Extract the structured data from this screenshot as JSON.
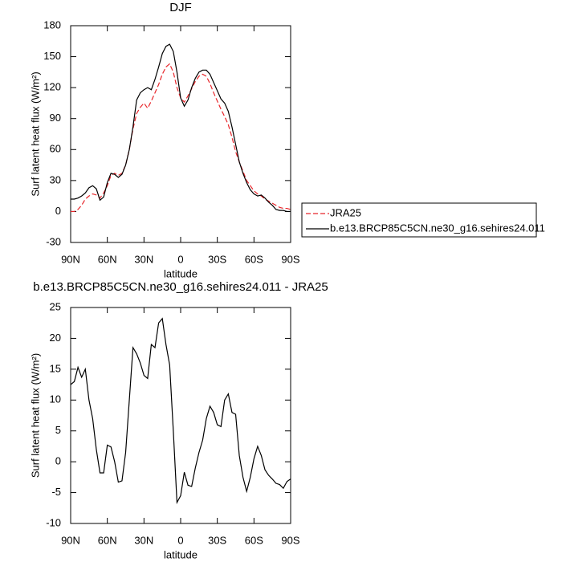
{
  "chart_data": [
    {
      "type": "line",
      "title": "DJF",
      "xlabel": "latitude",
      "ylabel": "Surf latent heat flux (W/m²)",
      "x": [
        90,
        87,
        84,
        81,
        78,
        75,
        72,
        69,
        66,
        63,
        60,
        57,
        54,
        51,
        48,
        45,
        42,
        39,
        36,
        33,
        30,
        27,
        24,
        21,
        18,
        15,
        12,
        9,
        6,
        3,
        0,
        -3,
        -6,
        -9,
        -12,
        -15,
        -18,
        -21,
        -24,
        -27,
        -30,
        -33,
        -36,
        -39,
        -42,
        -45,
        -48,
        -51,
        -54,
        -57,
        -60,
        -63,
        -66,
        -69,
        -72,
        -75,
        -78,
        -81,
        -84,
        -87,
        -90
      ],
      "series": [
        {
          "name": "JRA25",
          "color": "#e8262b",
          "line_style": "dashed",
          "values": [
            0,
            0,
            2,
            6,
            12,
            15,
            17,
            16,
            13,
            18,
            25,
            35,
            37,
            35,
            37,
            45,
            60,
            80,
            95,
            101,
            105,
            100,
            107,
            115,
            123,
            133,
            140,
            143,
            135,
            120,
            110,
            106,
            112,
            119,
            126,
            131,
            133,
            131,
            124,
            115,
            107,
            99,
            92,
            84,
            72,
            58,
            48,
            39,
            30,
            25,
            20,
            17,
            15,
            12,
            10,
            8,
            6,
            4,
            3,
            3,
            2
          ]
        },
        {
          "name": "b.e13.BRCP85C5CN.ne30_g16.sehires24.011",
          "color": "#000000",
          "line_style": "solid",
          "values": [
            12,
            12,
            13,
            15,
            18,
            23,
            25,
            22,
            11,
            14,
            28,
            37,
            36,
            33,
            36,
            45,
            60,
            82,
            108,
            115,
            118,
            120,
            118,
            128,
            140,
            153,
            160,
            162,
            155,
            135,
            110,
            102,
            108,
            120,
            129,
            135,
            137,
            137,
            133,
            125,
            117,
            109,
            105,
            97,
            82,
            65,
            48,
            37,
            28,
            21,
            17,
            15,
            16,
            13,
            9,
            6,
            2,
            1,
            1,
            0,
            0
          ]
        }
      ],
      "xlim": [
        90,
        -90
      ],
      "xticks": [
        {
          "value": 90,
          "label": "90N"
        },
        {
          "value": 60,
          "label": "60N"
        },
        {
          "value": 30,
          "label": "30N"
        },
        0,
        {
          "value": -30,
          "label": "30S"
        },
        {
          "value": -60,
          "label": "60S"
        },
        {
          "value": -90,
          "label": "90S"
        }
      ],
      "ylim": [
        -30,
        180
      ],
      "yticks": [
        -30,
        0,
        30,
        60,
        90,
        120,
        150,
        180
      ],
      "legend": "right"
    },
    {
      "type": "line",
      "title": "b.e13.BRCP85C5CN.ne30_g16.sehires24.011 - JRA25",
      "xlabel": "latitude",
      "ylabel": "Surf latent heat flux (W/m²)",
      "x": [
        90,
        87,
        84,
        81,
        78,
        75,
        72,
        69,
        66,
        63,
        60,
        57,
        54,
        51,
        48,
        45,
        42,
        39,
        36,
        33,
        30,
        27,
        24,
        21,
        18,
        15,
        12,
        9,
        6,
        3,
        0,
        -3,
        -6,
        -9,
        -12,
        -15,
        -18,
        -21,
        -24,
        -27,
        -30,
        -33,
        -36,
        -39,
        -42,
        -45,
        -48,
        -51,
        -54,
        -57,
        -60,
        -63,
        -66,
        -69,
        -72,
        -75,
        -78,
        -81,
        -84,
        -87,
        -90
      ],
      "series": [
        {
          "color": "#000000",
          "line_style": "solid",
          "values": [
            12.5,
            13,
            15.3,
            13.7,
            15,
            10,
            7,
            2,
            -1.8,
            -1.8,
            2.7,
            2.4,
            0,
            -3.3,
            -3.1,
            1.5,
            10,
            18.5,
            17.5,
            16,
            14,
            13.5,
            19,
            18.5,
            22.5,
            23.2,
            19,
            15.7,
            5,
            -6.6,
            -5.5,
            -1.7,
            -3.8,
            -4,
            -1,
            1.5,
            3.5,
            7,
            9,
            8,
            6,
            5.7,
            10,
            11,
            8,
            7.7,
            1,
            -2.5,
            -4.8,
            -2.5,
            0.5,
            2.5,
            1,
            -1.3,
            -2.2,
            -2.8,
            -3.5,
            -3.7,
            -4.3,
            -3.2,
            -2.8
          ]
        }
      ],
      "xlim": [
        90,
        -90
      ],
      "xticks": [
        {
          "value": 90,
          "label": "90N"
        },
        {
          "value": 60,
          "label": "60N"
        },
        {
          "value": 30,
          "label": "30N"
        },
        0,
        {
          "value": -30,
          "label": "30S"
        },
        {
          "value": -60,
          "label": "60S"
        },
        {
          "value": -90,
          "label": "90S"
        }
      ],
      "ylim": [
        -10,
        25
      ],
      "yticks": [
        -10,
        -5,
        0,
        5,
        10,
        15,
        20,
        25
      ]
    }
  ]
}
